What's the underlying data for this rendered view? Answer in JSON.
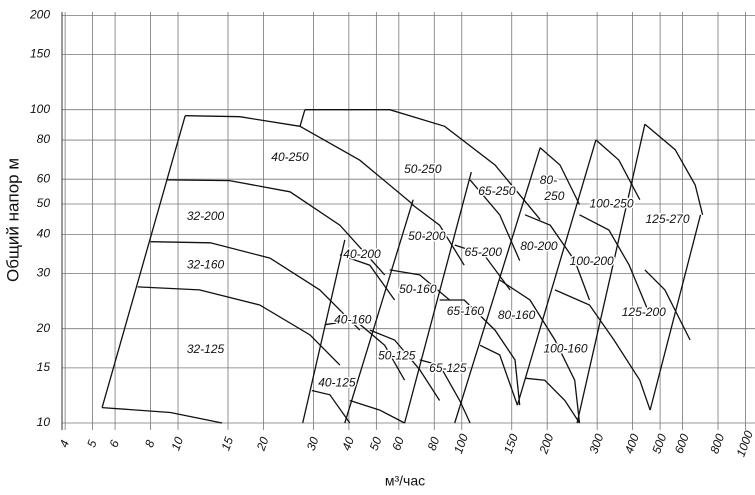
{
  "chart_data": {
    "type": "pump-curves",
    "ylabel": "Общий напор м",
    "xlabel": "м³/час",
    "xlog": true,
    "ylog": true,
    "grid": true,
    "color": "#111111",
    "xlim": [
      3.9,
      1080
    ],
    "ylim": [
      9.5,
      205
    ],
    "xticks": [
      4,
      5,
      6,
      8,
      10,
      15,
      20,
      30,
      40,
      50,
      60,
      80,
      100,
      150,
      200,
      300,
      400,
      500,
      600,
      800,
      1000
    ],
    "yticks": [
      10,
      15,
      20,
      30,
      40,
      50,
      60,
      80,
      100,
      150,
      200
    ],
    "curves": [
      {
        "points": [
          [
            5.4,
            11.2
          ],
          [
            10.6,
            95.7
          ]
        ]
      },
      {
        "points": [
          [
            5.4,
            11.2
          ],
          [
            9.4,
            10.8
          ],
          [
            14.3,
            10
          ]
        ]
      },
      {
        "points": [
          [
            7.2,
            27.2
          ],
          [
            11.9,
            26.6
          ],
          [
            19.4,
            23.8
          ],
          [
            29.2,
            19.1
          ],
          [
            37.2,
            15.3
          ]
        ]
      },
      {
        "points": [
          [
            8,
            37.9
          ],
          [
            13,
            37.6
          ],
          [
            21.1,
            33.6
          ],
          [
            31.6,
            26.6
          ],
          [
            43.7,
            19.8
          ]
        ]
      },
      {
        "points": [
          [
            9.1,
            59.7
          ],
          [
            15.2,
            59.4
          ],
          [
            24.8,
            54.7
          ],
          [
            37.2,
            42.8
          ],
          [
            53.5,
            29.7
          ]
        ]
      },
      {
        "points": [
          [
            10.6,
            95.7
          ],
          [
            16.5,
            95
          ],
          [
            26.9,
            88.5
          ],
          [
            43.7,
            69
          ],
          [
            67.4,
            49.8
          ]
        ]
      },
      {
        "points": [
          [
            28,
            100
          ],
          [
            55.7,
            100
          ],
          [
            87,
            88.5
          ],
          [
            131,
            66.6
          ],
          [
            189,
            44.6
          ]
        ]
      },
      {
        "points": [
          [
            26.9,
            88.5
          ],
          [
            28,
            100
          ]
        ]
      },
      {
        "points": [
          [
            38.7,
            38.4
          ],
          [
            27.5,
            10
          ]
        ]
      },
      {
        "points": [
          [
            67.4,
            51.6
          ],
          [
            38.7,
            10
          ]
        ]
      },
      {
        "points": [
          [
            108,
            63.2
          ],
          [
            62.9,
            10
          ]
        ]
      },
      {
        "points": [
          [
            189,
            75.6
          ],
          [
            94.4,
            10
          ]
        ]
      },
      {
        "points": [
          [
            297,
            80.1
          ],
          [
            157,
            11.4
          ]
        ]
      },
      {
        "points": [
          [
            442,
            89.9
          ],
          [
            255,
            10
          ]
        ]
      },
      {
        "points": [
          [
            694,
            46.2
          ],
          [
            461,
            11
          ]
        ]
      },
      {
        "points": [
          [
            189,
            75.6
          ],
          [
            222,
            66.6
          ],
          [
            260,
            49.8
          ]
        ]
      },
      {
        "points": [
          [
            297,
            80.1
          ],
          [
            358,
            69
          ],
          [
            424,
            51.6
          ]
        ]
      },
      {
        "points": [
          [
            442,
            89.9
          ],
          [
            565,
            74.5
          ],
          [
            665,
            57.5
          ],
          [
            706,
            46.2
          ]
        ]
      },
      {
        "points": [
          [
            37.2,
            34.4
          ],
          [
            47.4,
            31.9
          ],
          [
            58,
            24.7
          ]
        ]
      },
      {
        "points": [
          [
            32.9,
            20.6
          ],
          [
            42,
            21.3
          ],
          [
            53.5,
            17.7
          ],
          [
            62.9,
            13.7
          ]
        ]
      },
      {
        "points": [
          [
            29.6,
            12.7
          ],
          [
            34.3,
            12.3
          ],
          [
            40.3,
            10
          ]
        ]
      },
      {
        "points": [
          [
            66.9,
            49.8
          ],
          [
            83.5,
            42.8
          ],
          [
            102,
            31.9
          ]
        ]
      },
      {
        "points": [
          [
            55.7,
            30.8
          ],
          [
            71.1,
            29.7
          ],
          [
            90.6,
            24.7
          ]
        ]
      },
      {
        "points": [
          [
            47.4,
            19.8
          ],
          [
            58,
            18.4
          ],
          [
            71.1,
            14.8
          ],
          [
            83.5,
            11.8
          ]
        ]
      },
      {
        "points": [
          [
            40.3,
            11.8
          ],
          [
            51.4,
            11
          ],
          [
            62.9,
            10
          ]
        ]
      },
      {
        "points": [
          [
            107,
            59.7
          ],
          [
            136,
            46.2
          ],
          [
            160,
            33
          ]
        ]
      },
      {
        "points": [
          [
            94.4,
            37
          ],
          [
            120,
            34.4
          ],
          [
            148,
            26.6
          ]
        ]
      },
      {
        "points": [
          [
            83.5,
            24.7
          ],
          [
            102,
            24.7
          ],
          [
            131,
            19.8
          ],
          [
            154,
            15.9
          ],
          [
            160,
            11.4
          ]
        ]
      },
      {
        "points": [
          [
            71.1,
            15.9
          ],
          [
            83.5,
            15.3
          ],
          [
            98.3,
            11.8
          ],
          [
            107,
            10
          ]
        ]
      },
      {
        "points": [
          [
            167,
            46.2
          ],
          [
            205,
            42.8
          ],
          [
            250,
            33
          ],
          [
            282,
            24.7
          ]
        ]
      },
      {
        "points": [
          [
            136,
            28.6
          ],
          [
            174,
            24.7
          ],
          [
            213,
            18.4
          ],
          [
            250,
            13.7
          ],
          [
            260,
            10
          ]
        ]
      },
      {
        "points": [
          [
            116,
            17.7
          ],
          [
            136,
            16.5
          ],
          [
            157,
            11.4
          ]
        ]
      },
      {
        "points": [
          [
            260,
            46.2
          ],
          [
            330,
            41.3
          ],
          [
            389,
            31.9
          ],
          [
            453,
            22.9
          ]
        ]
      },
      {
        "points": [
          [
            213,
            26.6
          ],
          [
            282,
            23.8
          ],
          [
            344,
            18.4
          ],
          [
            424,
            13.7
          ],
          [
            461,
            11
          ]
        ]
      },
      {
        "points": [
          [
            167,
            13.9
          ],
          [
            196,
            13.7
          ],
          [
            231,
            11.8
          ],
          [
            260,
            10
          ]
        ]
      },
      {
        "points": [
          [
            442,
            30.8
          ],
          [
            520,
            26.6
          ],
          [
            638,
            18.4
          ]
        ]
      }
    ],
    "annotations": [
      {
        "text": "40-250",
        "x": 24.8,
        "y": 70.3
      },
      {
        "text": "50-250",
        "x": 72.9,
        "y": 64.3
      },
      {
        "text": "32-200",
        "x": 12.5,
        "y": 45.5
      },
      {
        "text": "32-160",
        "x": 12.5,
        "y": 31.9
      },
      {
        "text": "32-125",
        "x": 12.5,
        "y": 17.1
      },
      {
        "text": "40-200",
        "x": 44.5,
        "y": 34.4
      },
      {
        "text": "40-160",
        "x": 41.3,
        "y": 21.3
      },
      {
        "text": "40-125",
        "x": 36.3,
        "y": 13.4
      },
      {
        "text": "50-200",
        "x": 75.3,
        "y": 39.3
      },
      {
        "text": "50-160",
        "x": 70,
        "y": 26.6
      },
      {
        "text": "50-125",
        "x": 59,
        "y": 16.3
      },
      {
        "text": "65-250",
        "x": 133,
        "y": 54.7
      },
      {
        "text": "65-200",
        "x": 119,
        "y": 34.9
      },
      {
        "text": "65-160",
        "x": 103,
        "y": 22.6
      },
      {
        "text": "65-125",
        "x": 89.3,
        "y": 14.9
      },
      {
        "text": "80-",
        "x": 202,
        "y": 59.3
      },
      {
        "text": "250",
        "x": 212,
        "y": 52.7
      },
      {
        "text": "80-200",
        "x": 187,
        "y": 36.5
      },
      {
        "text": "80-160",
        "x": 156,
        "y": 22
      },
      {
        "text": "100-250",
        "x": 337,
        "y": 49.8
      },
      {
        "text": "100-200",
        "x": 287,
        "y": 32.7
      },
      {
        "text": "100-160",
        "x": 232,
        "y": 17.2
      },
      {
        "text": "125-270",
        "x": 531,
        "y": 44.5
      },
      {
        "text": "125-200",
        "x": 438,
        "y": 22.5
      }
    ]
  }
}
